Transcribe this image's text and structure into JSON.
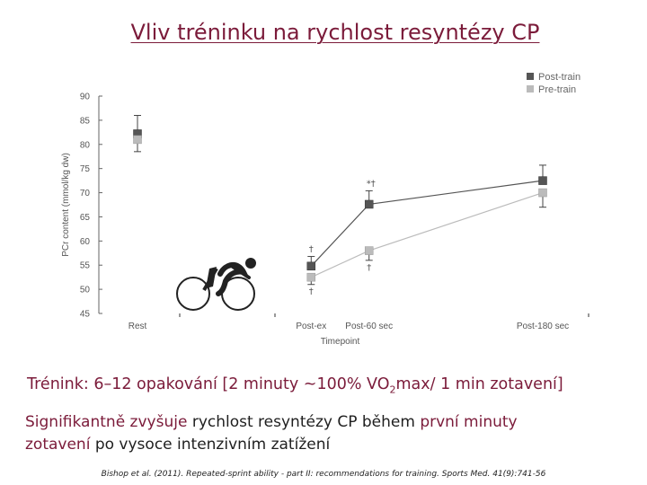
{
  "slide": {
    "title": "Vliv tréninku na rychlost resyntézy CP",
    "training_pre": "Trénink: 6–12 opakování [2 minuty ~100% VO",
    "training_sub": "2",
    "training_post": "max/ 1 min zotavení]",
    "finding_part1": "Signifikantně zvyšuje",
    "finding_part2": " rychlost resyntézy CP během ",
    "finding_part3": "první minuty",
    "finding_part4": "zotavení",
    "finding_part5": " po vysoce intenzivním zatížení",
    "citation": "Bishop et al. (2011). Repeated-sprint ability - part II: recommendations for training. Sports Med. 41(9):741-56"
  },
  "colors": {
    "title": "#7b1b3a",
    "post_train": "#555555",
    "pre_train": "#bbbbbb",
    "axis": "#666666"
  },
  "icons": [
    "cyclist-icon"
  ],
  "chart_data": {
    "type": "line",
    "title": "",
    "xlabel": "Timepoint",
    "ylabel": "PCr content (mmol/kg dw)",
    "ylim": [
      45,
      90
    ],
    "yticks": [
      45,
      50,
      55,
      60,
      65,
      70,
      75,
      80,
      85,
      90
    ],
    "categories": [
      "Rest",
      "Post-ex",
      "Post-60 sec",
      "Post-180 sec"
    ],
    "x": [
      0,
      180,
      240,
      420
    ],
    "legend_position": "top-right",
    "grid": false,
    "series": [
      {
        "name": "Post-train",
        "color": "#555555",
        "values": [
          82.2,
          54.8,
          67.6,
          72.5
        ],
        "error": [
          3.8,
          2.0,
          2.8,
          3.2
        ],
        "connected": [
          false,
          true,
          true,
          true
        ],
        "annotations": [
          "",
          "†",
          "*†",
          ""
        ]
      },
      {
        "name": "Pre-train",
        "color": "#bbbbbb",
        "values": [
          81.0,
          52.5,
          58.0,
          70.0
        ],
        "error": [
          2.5,
          1.5,
          2.0,
          3.0
        ],
        "connected": [
          false,
          true,
          true,
          true
        ],
        "annotations": [
          "",
          "†",
          "†",
          ""
        ]
      }
    ]
  }
}
